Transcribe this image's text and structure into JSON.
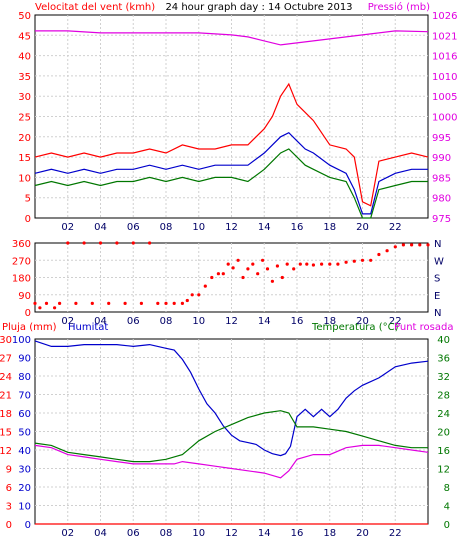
{
  "chart_data": [
    {
      "type": "line",
      "title": "24 hour graph day : 14 Octubre 2013",
      "left_label": "Velocitat del vent (kmh)",
      "right_label": "Pressió (mb)",
      "x_ticks": [
        "02",
        "04",
        "06",
        "08",
        "10",
        "12",
        "14",
        "16",
        "18",
        "20",
        "22"
      ],
      "left_ticks": [
        "0",
        "5",
        "10",
        "15",
        "20",
        "25",
        "30",
        "35",
        "40",
        "45",
        "50"
      ],
      "right_ticks": [
        "975",
        "980",
        "985",
        "990",
        "995",
        "1000",
        "1005",
        "1010",
        "1016",
        "1021",
        "1026"
      ],
      "xlim": [
        0,
        24
      ],
      "ylim_left": [
        0,
        50
      ],
      "ylim_right": [
        975,
        1026
      ],
      "grid": true,
      "colors": {
        "pressure": "#e000e0",
        "gust": "#ff0000",
        "speed": "#0000cc",
        "min": "#007700"
      },
      "series": [
        {
          "key": "pressure",
          "axis": "right",
          "x": [
            0,
            2,
            4,
            6,
            8,
            10,
            12,
            13,
            14,
            15,
            16,
            17,
            18,
            20,
            22,
            24
          ],
          "values": [
            1022,
            1022,
            1021.5,
            1021.5,
            1021.5,
            1021.5,
            1021,
            1020.5,
            1019.5,
            1018.5,
            1019,
            1019.5,
            1020,
            1021,
            1022,
            1021.8
          ]
        },
        {
          "key": "gust",
          "axis": "left",
          "x": [
            0,
            1,
            2,
            3,
            4,
            5,
            6,
            7,
            8,
            9,
            10,
            11,
            12,
            13,
            14,
            14.5,
            15,
            15.5,
            16,
            16.5,
            17,
            18,
            19,
            19.5,
            20,
            20.5,
            21,
            22,
            23,
            24
          ],
          "values": [
            15,
            16,
            15,
            16,
            15,
            16,
            16,
            17,
            16,
            18,
            17,
            17,
            18,
            18,
            22,
            25,
            30,
            33,
            28,
            26,
            24,
            18,
            17,
            15,
            4,
            3,
            14,
            15,
            16,
            15
          ]
        },
        {
          "key": "speed",
          "axis": "left",
          "x": [
            0,
            1,
            2,
            3,
            4,
            5,
            6,
            7,
            8,
            9,
            10,
            11,
            12,
            13,
            14,
            14.5,
            15,
            15.5,
            16,
            16.5,
            17,
            18,
            19,
            19.5,
            20,
            20.5,
            21,
            22,
            23,
            24
          ],
          "values": [
            11,
            12,
            11,
            12,
            11,
            12,
            12,
            13,
            12,
            13,
            12,
            13,
            13,
            13,
            16,
            18,
            20,
            21,
            19,
            17,
            16,
            13,
            11,
            7,
            1,
            1,
            9,
            11,
            12,
            12
          ]
        },
        {
          "key": "min",
          "axis": "left",
          "x": [
            0,
            1,
            2,
            3,
            4,
            5,
            6,
            7,
            8,
            9,
            10,
            11,
            12,
            13,
            14,
            14.5,
            15,
            15.5,
            16,
            16.5,
            17,
            18,
            19,
            19.5,
            20,
            20.5,
            21,
            22,
            23,
            24
          ],
          "values": [
            8,
            9,
            8,
            9,
            8,
            9,
            9,
            10,
            9,
            10,
            9,
            10,
            10,
            9,
            12,
            14,
            16,
            17,
            15,
            13,
            12,
            10,
            9,
            5,
            0,
            0,
            7,
            8,
            9,
            9
          ]
        }
      ]
    },
    {
      "type": "scatter",
      "y_ticks_left": [
        "0",
        "90",
        "180",
        "270",
        "360"
      ],
      "y_ticks_right": [
        "N",
        "E",
        "S",
        "W",
        "N"
      ],
      "x_ticks": [
        "02",
        "04",
        "06",
        "08",
        "10",
        "12",
        "14",
        "16",
        "18",
        "20",
        "22"
      ],
      "xlim": [
        0,
        24
      ],
      "ylim": [
        0,
        360
      ],
      "grid": true,
      "colors": {
        "direction": "#ff0000"
      },
      "points": {
        "x": [
          0,
          0.3,
          0.7,
          1.2,
          1.5,
          2,
          2.5,
          3,
          3.5,
          4,
          4.5,
          5,
          5.5,
          6,
          6.5,
          7,
          7.5,
          8,
          8.5,
          9,
          9.3,
          9.6,
          10,
          10.4,
          10.8,
          11.2,
          11.5,
          11.8,
          12.1,
          12.4,
          12.7,
          13,
          13.3,
          13.6,
          13.9,
          14.2,
          14.5,
          14.8,
          15.1,
          15.4,
          15.8,
          16.2,
          16.6,
          17,
          17.5,
          18,
          18.5,
          19,
          19.5,
          20,
          20.5,
          21,
          21.5,
          22,
          22.5,
          23,
          23.5,
          24
        ],
        "y": [
          45,
          22,
          45,
          22,
          45,
          360,
          45,
          360,
          45,
          360,
          45,
          360,
          45,
          360,
          45,
          360,
          45,
          45,
          45,
          45,
          60,
          90,
          90,
          135,
          180,
          200,
          200,
          250,
          230,
          270,
          180,
          225,
          250,
          200,
          270,
          225,
          160,
          240,
          180,
          250,
          225,
          250,
          250,
          245,
          250,
          250,
          250,
          260,
          265,
          270,
          270,
          300,
          320,
          340,
          350,
          350,
          350,
          350
        ]
      }
    },
    {
      "type": "line",
      "left_label_1": "Pluja (mm)",
      "left_label_2": "Humitat",
      "right_label_1": "Temperatura (°C)",
      "right_label_2": "Punt rosada",
      "x_ticks": [
        "02",
        "04",
        "06",
        "08",
        "10",
        "12",
        "14",
        "16",
        "18",
        "20",
        "22"
      ],
      "rain_ticks": [
        "0",
        "3",
        "6",
        "9",
        "12",
        "15",
        "18",
        "21",
        "24",
        "27",
        "30"
      ],
      "humidity_ticks": [
        "0",
        "10",
        "20",
        "30",
        "40",
        "50",
        "60",
        "70",
        "80",
        "90",
        "100"
      ],
      "temp_ticks": [
        "0",
        "4",
        "8",
        "12",
        "16",
        "20",
        "24",
        "28",
        "32",
        "36",
        "40"
      ],
      "xlim": [
        0,
        24
      ],
      "ylim_rain": [
        0,
        30
      ],
      "ylim_humidity": [
        0,
        100
      ],
      "ylim_temp": [
        0,
        40
      ],
      "grid": true,
      "colors": {
        "rain": "#ff0000",
        "humidity": "#0000cc",
        "temperature": "#007700",
        "dewpoint": "#e000e0"
      },
      "series": [
        {
          "key": "rain",
          "axis": "rain",
          "x": [
            0,
            24
          ],
          "values": [
            0,
            0
          ]
        },
        {
          "key": "humidity",
          "axis": "humidity",
          "x": [
            0,
            1,
            2,
            3,
            4,
            5,
            6,
            7,
            8,
            8.5,
            9,
            9.5,
            10,
            10.5,
            11,
            11.5,
            12,
            12.5,
            13,
            13.5,
            14,
            14.5,
            15,
            15.3,
            15.6,
            16,
            16.5,
            17,
            17.5,
            18,
            18.5,
            19,
            19.5,
            20,
            21,
            22,
            23,
            24
          ],
          "values": [
            99,
            96,
            96,
            97,
            97,
            97,
            96,
            97,
            95,
            94,
            89,
            82,
            73,
            65,
            60,
            53,
            48,
            45,
            44,
            43,
            40,
            38,
            37,
            38,
            42,
            58,
            62,
            58,
            62,
            58,
            62,
            68,
            72,
            75,
            79,
            85,
            87,
            88
          ]
        },
        {
          "key": "temperature",
          "axis": "temp",
          "x": [
            0,
            1,
            2,
            3,
            4,
            5,
            6,
            7,
            8,
            8.5,
            9,
            9.5,
            10,
            11,
            12,
            13,
            14,
            15,
            15.5,
            16,
            17,
            18,
            19,
            20,
            21,
            22,
            23,
            24
          ],
          "values": [
            17.5,
            17,
            15.5,
            15,
            14.5,
            14,
            13.5,
            13.5,
            14,
            14.5,
            15,
            16.5,
            18,
            20,
            21.5,
            23,
            24,
            24.5,
            24,
            21,
            21,
            20.5,
            20,
            19,
            18,
            17,
            16.5,
            16.5
          ]
        },
        {
          "key": "dewpoint",
          "axis": "temp",
          "x": [
            0,
            1,
            2,
            3,
            4,
            5,
            6,
            7,
            8,
            8.5,
            9,
            10,
            11,
            12,
            13,
            14,
            14.5,
            15,
            15.5,
            16,
            17,
            18,
            19,
            20,
            21,
            22,
            23,
            24
          ],
          "values": [
            17,
            16.5,
            15,
            14.5,
            14,
            13.5,
            13,
            13,
            13,
            13,
            13.5,
            13,
            12.5,
            12,
            11.5,
            11,
            10.5,
            10,
            11.5,
            14,
            15,
            15,
            16.5,
            17,
            17,
            16.5,
            16,
            15.5
          ]
        }
      ]
    }
  ]
}
